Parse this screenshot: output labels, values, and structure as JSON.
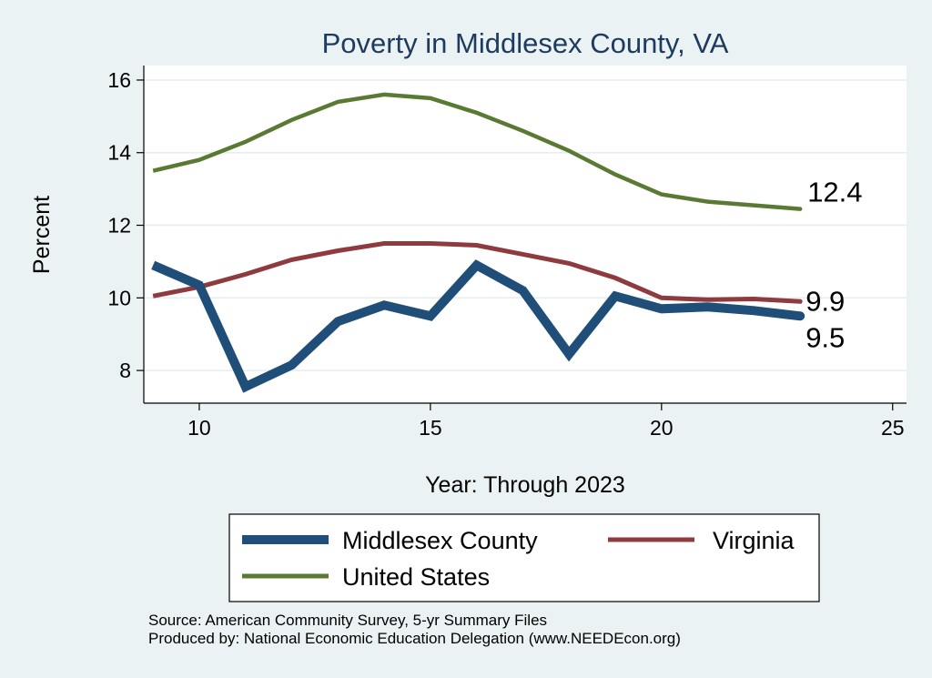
{
  "chart_data": {
    "type": "line",
    "title": "Poverty in Middlesex County, VA",
    "xlabel": "Year: Through 2023",
    "ylabel": "Percent",
    "xlim": [
      8.8,
      25.3
    ],
    "ylim": [
      7.1,
      16.4
    ],
    "xticks": [
      10,
      15,
      20,
      25
    ],
    "yticks": [
      8,
      10,
      12,
      14,
      16
    ],
    "grid": true,
    "legend_position": "bottom",
    "series": [
      {
        "name": "Middlesex County",
        "color": "#1f4e79",
        "x": [
          9,
          10,
          11,
          12,
          13,
          14,
          15,
          16,
          17,
          18,
          19,
          20,
          21,
          22,
          23
        ],
        "y": [
          10.9,
          10.35,
          7.55,
          8.15,
          9.35,
          9.8,
          9.5,
          10.9,
          10.2,
          8.45,
          10.05,
          9.7,
          9.75,
          9.65,
          9.5
        ],
        "end_label": "9.5"
      },
      {
        "name": "Virginia",
        "color": "#8e3a3e",
        "x": [
          9,
          10,
          11,
          12,
          13,
          14,
          15,
          16,
          17,
          18,
          19,
          20,
          21,
          22,
          23
        ],
        "y": [
          10.05,
          10.3,
          10.65,
          11.05,
          11.3,
          11.5,
          11.5,
          11.45,
          11.2,
          10.95,
          10.55,
          10.0,
          9.95,
          9.97,
          9.9
        ],
        "end_label": "9.9"
      },
      {
        "name": "United States",
        "color": "#5a7a34",
        "x": [
          9,
          10,
          11,
          12,
          13,
          14,
          15,
          16,
          17,
          18,
          19,
          20,
          21,
          22,
          23
        ],
        "y": [
          13.5,
          13.8,
          14.3,
          14.9,
          15.4,
          15.6,
          15.5,
          15.1,
          14.6,
          14.05,
          13.4,
          12.85,
          12.65,
          12.55,
          12.45
        ],
        "end_label": "12.4"
      }
    ]
  },
  "notes": {
    "source": "Source: American Community Survey, 5-yr Summary Files",
    "produced": "Produced by: National Economic Education Delegation (www.NEEDEcon.org)"
  }
}
